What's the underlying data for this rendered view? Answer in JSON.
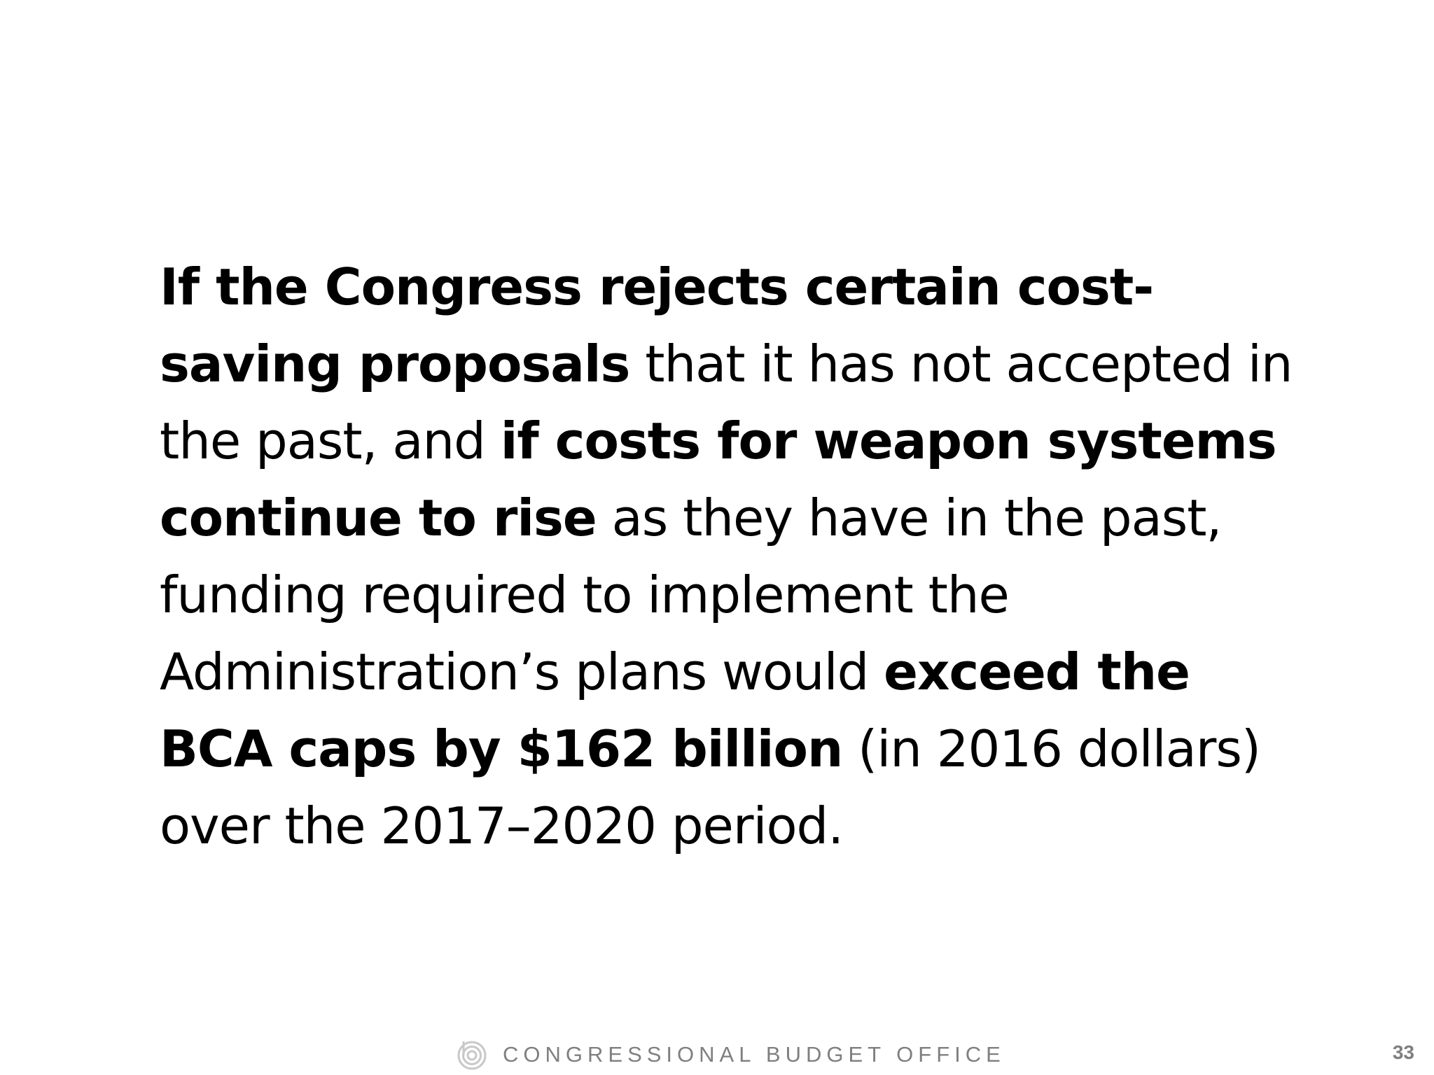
{
  "body": {
    "segments": [
      {
        "text": "If the Congress rejects certain cost-saving proposals",
        "bold": true
      },
      {
        "text": " that it has not accepted in the past, and ",
        "bold": false
      },
      {
        "text": "if costs for weapon systems continue to rise",
        "bold": true
      },
      {
        "text": " as they have in the past, funding required to implement the Administration’s plans would ",
        "bold": false
      },
      {
        "text": "exceed the BCA caps by $162 billion",
        "bold": true
      },
      {
        "text": " (in 2016 dollars) over the 2017–2020 period.",
        "bold": false
      }
    ]
  },
  "footer": {
    "organization": "CONGRESSIONAL BUDGET OFFICE",
    "logo_icon": "cbo-logo-icon",
    "page_number": "33"
  },
  "colors": {
    "text": "#000000",
    "footer_gray": "#7f7f7f",
    "background": "#ffffff"
  }
}
